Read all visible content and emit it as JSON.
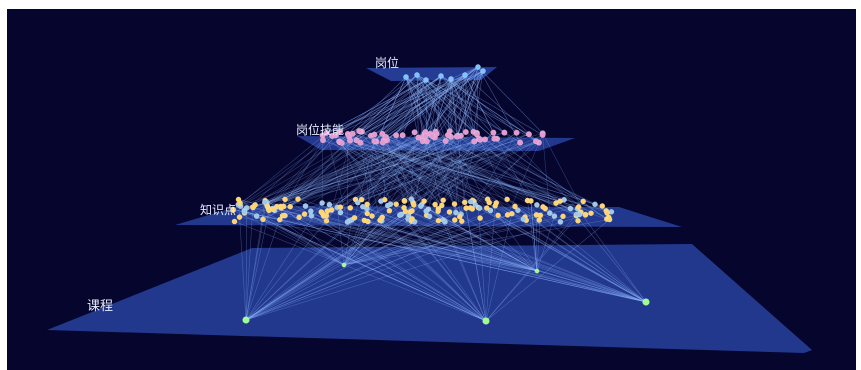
{
  "layers": [
    {
      "label": "岗位",
      "node_count": 8,
      "node_color": "#7ec3ff"
    },
    {
      "label": "岗位技能",
      "node_count": 70,
      "node_color": "#e39ad0"
    },
    {
      "label": "知识点",
      "node_count": 180,
      "node_color": "#ffd36e"
    },
    {
      "label": "课程",
      "node_count": 5,
      "node_color": "#9dff8e"
    }
  ],
  "colors": {
    "background": "#05052e",
    "plane": "#2f4fb6",
    "edge": "#8fb8ff"
  }
}
